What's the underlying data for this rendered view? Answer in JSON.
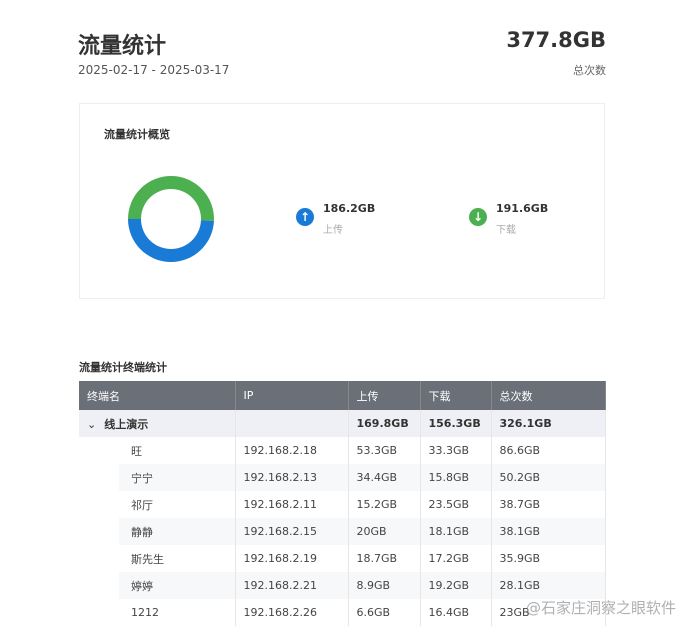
{
  "header": {
    "title": "流量统计",
    "date_range": "2025-02-17 - 2025-03-17",
    "total_value": "377.8GB",
    "total_label": "总次数"
  },
  "overview": {
    "title": "流量统计概览",
    "upload": {
      "value": "186.2GB",
      "label": "上传",
      "icon": "arrow-up-icon",
      "color": "#1a7bd6"
    },
    "download": {
      "value": "191.6GB",
      "label": "下载",
      "icon": "arrow-down-icon",
      "color": "#4caf50"
    },
    "donut": {
      "upload_gb": 186.2,
      "download_gb": 191.6
    }
  },
  "table": {
    "title": "流量统计终端统计",
    "columns": [
      "终端名",
      "IP",
      "上传",
      "下载",
      "总次数"
    ],
    "group": {
      "name": "线上演示",
      "ip": "",
      "upload": "169.8GB",
      "download": "156.3GB",
      "total": "326.1GB"
    },
    "rows": [
      {
        "name": "旺",
        "ip": "192.168.2.18",
        "upload": "53.3GB",
        "download": "33.3GB",
        "total": "86.6GB"
      },
      {
        "name": "宁宁",
        "ip": "192.168.2.13",
        "upload": "34.4GB",
        "download": "15.8GB",
        "total": "50.2GB"
      },
      {
        "name": "祁厅",
        "ip": "192.168.2.11",
        "upload": "15.2GB",
        "download": "23.5GB",
        "total": "38.7GB"
      },
      {
        "name": "静静",
        "ip": "192.168.2.15",
        "upload": "20GB",
        "download": "18.1GB",
        "total": "38.1GB"
      },
      {
        "name": "斯先生",
        "ip": "192.168.2.19",
        "upload": "18.7GB",
        "download": "17.2GB",
        "total": "35.9GB"
      },
      {
        "name": "婷婷",
        "ip": "192.168.2.21",
        "upload": "8.9GB",
        "download": "19.2GB",
        "total": "28.1GB"
      },
      {
        "name": "1212",
        "ip": "192.168.2.26",
        "upload": "6.6GB",
        "download": "16.4GB",
        "total": "23GB"
      }
    ]
  },
  "watermark": "@石家庄洞察之眼软件"
}
